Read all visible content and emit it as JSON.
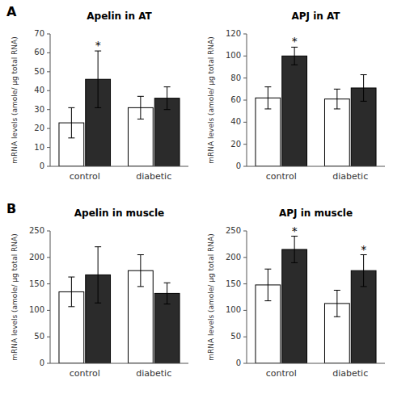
{
  "chart_data": [
    {
      "type": "bar",
      "panel_label": "A",
      "title": "Apelin in AT",
      "ylabel": "mRNA levels (amole/ μg total RNA)",
      "categories": [
        "control",
        "diabetic"
      ],
      "ylim": [
        0,
        70
      ],
      "yticks": [
        0,
        10,
        20,
        30,
        40,
        50,
        60,
        70
      ],
      "grid": false,
      "series": [
        {
          "color": "#ffffff",
          "values": [
            23,
            31
          ],
          "errors": [
            8,
            6
          ],
          "annotations": [
            null,
            null
          ]
        },
        {
          "color": "#2b2b2b",
          "values": [
            46,
            36
          ],
          "errors": [
            15,
            6
          ],
          "annotations": [
            "*",
            null
          ]
        }
      ]
    },
    {
      "type": "bar",
      "title": "APJ in AT",
      "ylabel": "mRNA levels (amole/ μg total RNA)",
      "categories": [
        "control",
        "diabetic"
      ],
      "ylim": [
        0,
        120
      ],
      "yticks": [
        0,
        20,
        40,
        60,
        80,
        100,
        120
      ],
      "grid": false,
      "series": [
        {
          "color": "#ffffff",
          "values": [
            62,
            61
          ],
          "errors": [
            10,
            9
          ],
          "annotations": [
            null,
            null
          ]
        },
        {
          "color": "#2b2b2b",
          "values": [
            100,
            71
          ],
          "errors": [
            8,
            12
          ],
          "annotations": [
            "*",
            null
          ]
        }
      ]
    },
    {
      "type": "bar",
      "panel_label": "B",
      "title": "Apelin in muscle",
      "ylabel": "mRNA levels (amole/ μg total RNA)",
      "categories": [
        "control",
        "diabetic"
      ],
      "ylim": [
        0,
        250
      ],
      "yticks": [
        0,
        50,
        100,
        150,
        200,
        250
      ],
      "grid": false,
      "series": [
        {
          "color": "#ffffff",
          "values": [
            135,
            175
          ],
          "errors": [
            28,
            30
          ],
          "annotations": [
            null,
            null
          ]
        },
        {
          "color": "#2b2b2b",
          "values": [
            167,
            132
          ],
          "errors": [
            53,
            20
          ],
          "annotations": [
            null,
            null
          ]
        }
      ]
    },
    {
      "type": "bar",
      "title": "APJ in muscle",
      "ylabel": "mRNA levels (amole/ μg total RNA)",
      "categories": [
        "control",
        "diabetic"
      ],
      "ylim": [
        0,
        250
      ],
      "yticks": [
        0,
        50,
        100,
        150,
        200,
        250
      ],
      "grid": false,
      "series": [
        {
          "color": "#ffffff",
          "values": [
            148,
            113
          ],
          "errors": [
            30,
            25
          ],
          "annotations": [
            null,
            null
          ]
        },
        {
          "color": "#2b2b2b",
          "values": [
            215,
            175
          ],
          "errors": [
            25,
            30
          ],
          "annotations": [
            "*",
            "*"
          ]
        }
      ]
    }
  ]
}
